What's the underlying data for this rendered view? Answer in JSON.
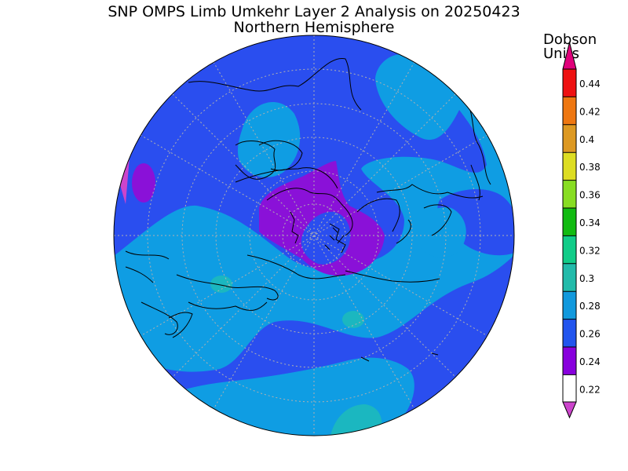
{
  "title": "SNP OMPS Limb Umkehr Layer 2 Analysis on 20250423",
  "subtitle": "Northern Hemisphere",
  "units_line1": "Dobson",
  "units_line2": "Units",
  "colorbar": {
    "labels": [
      "0.44",
      "0.42",
      "0.4",
      "0.38",
      "0.36",
      "0.34",
      "0.32",
      "0.3",
      "0.28",
      "0.26",
      "0.24",
      "0.22"
    ],
    "colors_top_to_bottom": [
      "#e0007a",
      "#ee1111",
      "#ee7711",
      "#dd9922",
      "#dddd22",
      "#88dd22",
      "#11bb11",
      "#11cc88",
      "#22bbaa",
      "#1199dd",
      "#2255ee",
      "#8800dd",
      "#cc44cc"
    ]
  },
  "map": {
    "projection": "north-polar-stereographic",
    "colors": {
      "level_022_024": "#8a11d8",
      "level_024_026": "#2a4eef",
      "level_026_028": "#0f9de3",
      "level_028_030": "#1bb7c0",
      "level_030_032": "#1ccc90",
      "coastline": "#000000",
      "grid": "#b0b0b0"
    }
  }
}
